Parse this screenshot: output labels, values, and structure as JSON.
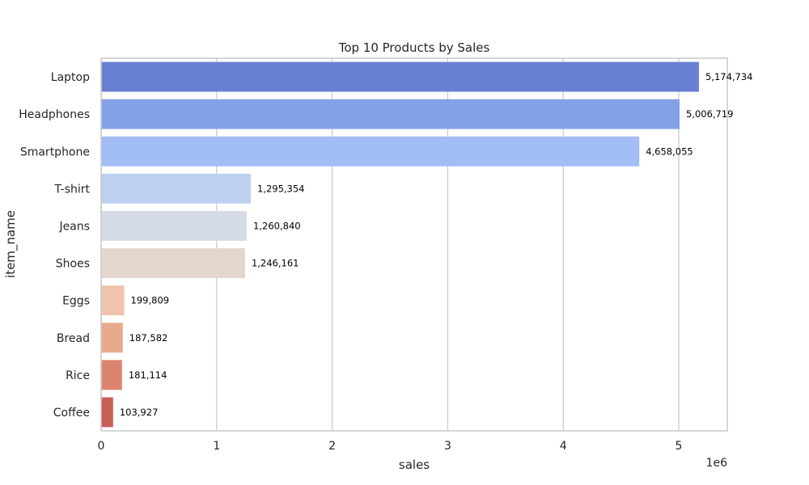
{
  "chart_data": {
    "type": "bar",
    "orientation": "horizontal",
    "title": "Top 10 Products by Sales",
    "xlabel": "sales",
    "ylabel": "item_name",
    "x_scale_label": "1e6",
    "xlim": [
      0,
      5420000
    ],
    "x_ticks": [
      0,
      1000000,
      2000000,
      3000000,
      4000000,
      5000000
    ],
    "x_tick_labels": [
      "0",
      "1",
      "2",
      "3",
      "4",
      "5"
    ],
    "grid": "vertical",
    "categories": [
      "Laptop",
      "Headphones",
      "Smartphone",
      "T-shirt",
      "Jeans",
      "Shoes",
      "Eggs",
      "Bread",
      "Rice",
      "Coffee"
    ],
    "values": [
      5174734,
      5006719,
      4658055,
      1295354,
      1260840,
      1246161,
      199809,
      187582,
      181114,
      103927
    ],
    "value_labels": [
      "5,174,734",
      "5,006,719",
      "4,658,055",
      "1,295,354",
      "1,260,840",
      "1,246,161",
      "199,809",
      "187,582",
      "181,114",
      "103,927"
    ],
    "colors": [
      "#6880d4",
      "#83a1e6",
      "#a2bcf4",
      "#bdd0f2",
      "#d5dbe6",
      "#e4d6cf",
      "#efc3ad",
      "#e8a98d",
      "#dd8470",
      "#c95e56"
    ]
  }
}
